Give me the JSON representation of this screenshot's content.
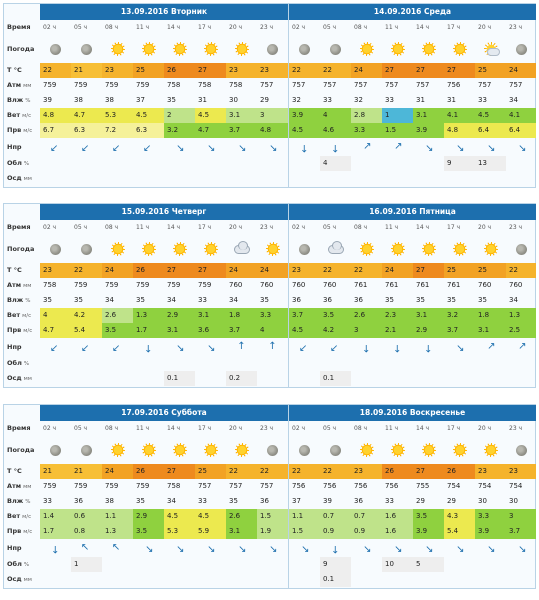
{
  "labels": {
    "time": "Время",
    "weather": "Погода",
    "temp": "Т °С",
    "pressure": "Атм",
    "pressure_unit": "мм",
    "humidity": "Влж",
    "humidity_unit": "%",
    "wind": "Вет",
    "wind_unit": "м/с",
    "gust": "Прв",
    "gust_unit": "м/с",
    "direction": "Нпр",
    "clouds": "Обл",
    "clouds_unit": "%",
    "precip": "Осд",
    "precip_unit": "мм"
  },
  "hours": [
    "02 ч",
    "05 ч",
    "08 ч",
    "11 ч",
    "14 ч",
    "17 ч",
    "20 ч",
    "23 ч"
  ],
  "temp_colors": {
    "21": "#f7bf36",
    "22": "#f5b32c",
    "23": "#f5b32c",
    "24": "#f2a224",
    "25": "#f2a224",
    "26": "#ee8a1e",
    "27": "#ee8a1e"
  },
  "wind_colors": {
    "blue": "#4db7d8",
    "lgreen": "#bfe38a",
    "green": "#8fd13f",
    "bright": "#5ec83c",
    "yellow": "#ece94f",
    "pale": "#f5f19a"
  },
  "blocks": [
    {
      "days": [
        {
          "title": "13.09.2016 Вторник",
          "icons": [
            "moon",
            "moon",
            "sun",
            "sun",
            "sun",
            "sun",
            "sun",
            "moon"
          ],
          "temp": [
            "22",
            "21",
            "23",
            "25",
            "26",
            "27",
            "23",
            "23"
          ],
          "pressure": [
            "759",
            "759",
            "759",
            "759",
            "758",
            "758",
            "758",
            "757"
          ],
          "humidity": [
            "39",
            "38",
            "38",
            "37",
            "35",
            "31",
            "30",
            "29"
          ],
          "wind": [
            "4.8",
            "4.7",
            "5.3",
            "4.5",
            "2",
            "4.5",
            "3.1",
            "3"
          ],
          "wind_c": [
            "yellow",
            "yellow",
            "yellow",
            "yellow",
            "lgreen",
            "yellow",
            "lgreen",
            "lgreen"
          ],
          "gust": [
            "6.7",
            "6.3",
            "7.2",
            "6.3",
            "3.2",
            "4.7",
            "3.7",
            "4.8"
          ],
          "gust_c": [
            "pale",
            "pale",
            "pale",
            "pale",
            "green",
            "green",
            "green",
            "green"
          ],
          "dir": [
            225,
            225,
            225,
            225,
            135,
            135,
            135,
            135
          ],
          "clouds": [
            "",
            "",
            "",
            "",
            "",
            "",
            "",
            ""
          ],
          "precip": [
            "",
            "",
            "",
            "",
            "",
            "",
            "",
            ""
          ]
        },
        {
          "title": "14.09.2016 Среда",
          "icons": [
            "moon",
            "moon",
            "sun",
            "sun",
            "sun",
            "sun",
            "psun",
            "moon"
          ],
          "temp": [
            "22",
            "22",
            "24",
            "27",
            "27",
            "27",
            "25",
            "24"
          ],
          "pressure": [
            "757",
            "757",
            "757",
            "757",
            "757",
            "756",
            "757",
            "757"
          ],
          "humidity": [
            "32",
            "33",
            "32",
            "33",
            "31",
            "31",
            "33",
            "34"
          ],
          "wind": [
            "3.9",
            "4",
            "2.8",
            "1",
            "3.1",
            "4.1",
            "4.5",
            "4.1"
          ],
          "wind_c": [
            "green",
            "green",
            "lgreen",
            "blue",
            "green",
            "green",
            "green",
            "green"
          ],
          "gust": [
            "4.5",
            "4.6",
            "3.3",
            "1.5",
            "3.9",
            "4.8",
            "6.4",
            "6.4"
          ],
          "gust_c": [
            "green",
            "green",
            "green",
            "green",
            "green",
            "yellow",
            "yellow",
            "yellow"
          ],
          "dir": [
            180,
            180,
            45,
            45,
            135,
            135,
            135,
            135
          ],
          "clouds": [
            "",
            "4",
            "",
            "",
            "",
            "9",
            "13",
            ""
          ],
          "precip": [
            "",
            "",
            "",
            "",
            "",
            "",
            "",
            ""
          ]
        }
      ]
    },
    {
      "days": [
        {
          "title": "15.09.2016 Четверг",
          "icons": [
            "moon",
            "moon",
            "sun",
            "sun",
            "sun",
            "sun",
            "cloud",
            "sun"
          ],
          "temp": [
            "23",
            "22",
            "24",
            "26",
            "27",
            "27",
            "24",
            "24"
          ],
          "pressure": [
            "758",
            "759",
            "759",
            "759",
            "759",
            "759",
            "760",
            "760"
          ],
          "humidity": [
            "35",
            "35",
            "34",
            "35",
            "34",
            "33",
            "34",
            "35"
          ],
          "wind": [
            "4",
            "4.2",
            "2.6",
            "1.3",
            "2.9",
            "3.1",
            "1.8",
            "3.3"
          ],
          "wind_c": [
            "yellow",
            "yellow",
            "lgreen",
            "green",
            "green",
            "green",
            "green",
            "green"
          ],
          "gust": [
            "4.7",
            "5.4",
            "3.5",
            "1.7",
            "3.1",
            "3.6",
            "3.7",
            "4"
          ],
          "gust_c": [
            "yellow",
            "yellow",
            "green",
            "green",
            "green",
            "green",
            "green",
            "green"
          ],
          "dir": [
            225,
            225,
            225,
            180,
            135,
            135,
            0,
            0
          ],
          "clouds": [
            "",
            "",
            "",
            "",
            "",
            "",
            "",
            ""
          ],
          "precip": [
            "",
            "",
            "",
            "",
            "0.1",
            "",
            "0.2",
            ""
          ]
        },
        {
          "title": "16.09.2016 Пятница",
          "icons": [
            "moon",
            "cloud",
            "sun",
            "sun",
            "sun",
            "sun",
            "sun",
            "moon"
          ],
          "temp": [
            "23",
            "22",
            "22",
            "24",
            "27",
            "25",
            "25",
            "22"
          ],
          "pressure": [
            "760",
            "760",
            "761",
            "761",
            "761",
            "761",
            "760",
            "760"
          ],
          "humidity": [
            "36",
            "36",
            "36",
            "35",
            "35",
            "35",
            "35",
            "34"
          ],
          "wind": [
            "3.7",
            "3.5",
            "2.6",
            "2.3",
            "3.1",
            "3.2",
            "1.8",
            "1.3"
          ],
          "wind_c": [
            "green",
            "green",
            "green",
            "green",
            "green",
            "green",
            "green",
            "green"
          ],
          "gust": [
            "4.5",
            "4.2",
            "3",
            "2.1",
            "2.9",
            "3.7",
            "3.1",
            "2.5"
          ],
          "gust_c": [
            "green",
            "green",
            "green",
            "green",
            "green",
            "green",
            "green",
            "green"
          ],
          "dir": [
            225,
            225,
            180,
            180,
            180,
            135,
            45,
            45
          ],
          "clouds": [
            "",
            "",
            "",
            "",
            "",
            "",
            "",
            ""
          ],
          "precip": [
            "",
            "0.1",
            "",
            "",
            "",
            "",
            "",
            ""
          ]
        }
      ]
    },
    {
      "days": [
        {
          "title": "17.09.2016 Суббота",
          "icons": [
            "moon",
            "moon",
            "sun",
            "sun",
            "sun",
            "sun",
            "sun",
            "moon"
          ],
          "temp": [
            "21",
            "21",
            "24",
            "26",
            "27",
            "25",
            "22",
            "22"
          ],
          "pressure": [
            "759",
            "759",
            "759",
            "759",
            "758",
            "757",
            "757",
            "757"
          ],
          "humidity": [
            "33",
            "36",
            "38",
            "35",
            "34",
            "33",
            "35",
            "36"
          ],
          "wind": [
            "1.4",
            "0.6",
            "1.1",
            "2.9",
            "4.5",
            "4.5",
            "2.6",
            "1.5"
          ],
          "wind_c": [
            "lgreen",
            "lgreen",
            "lgreen",
            "green",
            "yellow",
            "yellow",
            "green",
            "lgreen"
          ],
          "gust": [
            "1.7",
            "0.8",
            "1.3",
            "3.5",
            "5.3",
            "5.9",
            "3.1",
            "1.9"
          ],
          "gust_c": [
            "lgreen",
            "lgreen",
            "lgreen",
            "green",
            "yellow",
            "yellow",
            "green",
            "lgreen"
          ],
          "dir": [
            180,
            315,
            315,
            135,
            135,
            135,
            135,
            135
          ],
          "clouds": [
            "",
            "1",
            "",
            "",
            "",
            "",
            "",
            ""
          ],
          "precip": [
            "",
            "",
            "",
            "",
            "",
            "",
            "",
            ""
          ]
        },
        {
          "title": "18.09.2016 Воскресенье",
          "icons": [
            "moon",
            "moon",
            "sun",
            "sun",
            "sun",
            "sun",
            "sun",
            "moon"
          ],
          "temp": [
            "22",
            "22",
            "23",
            "26",
            "27",
            "26",
            "23",
            "23"
          ],
          "pressure": [
            "756",
            "756",
            "756",
            "756",
            "755",
            "754",
            "754",
            "754"
          ],
          "humidity": [
            "37",
            "39",
            "36",
            "33",
            "29",
            "29",
            "30",
            "30"
          ],
          "wind": [
            "1.1",
            "0.7",
            "0.7",
            "1.6",
            "3.5",
            "4.3",
            "3.3",
            "3"
          ],
          "wind_c": [
            "lgreen",
            "lgreen",
            "lgreen",
            "lgreen",
            "green",
            "yellow",
            "green",
            "green"
          ],
          "gust": [
            "1.5",
            "0.9",
            "0.9",
            "1.6",
            "3.9",
            "5.4",
            "3.9",
            "3.7"
          ],
          "gust_c": [
            "lgreen",
            "lgreen",
            "lgreen",
            "lgreen",
            "green",
            "yellow",
            "green",
            "green"
          ],
          "dir": [
            135,
            180,
            135,
            135,
            135,
            135,
            135,
            135
          ],
          "clouds": [
            "",
            "9",
            "",
            "10",
            "5",
            "",
            "",
            ""
          ],
          "precip": [
            "",
            "0.1",
            "",
            "",
            "",
            "",
            "",
            ""
          ]
        }
      ]
    }
  ]
}
